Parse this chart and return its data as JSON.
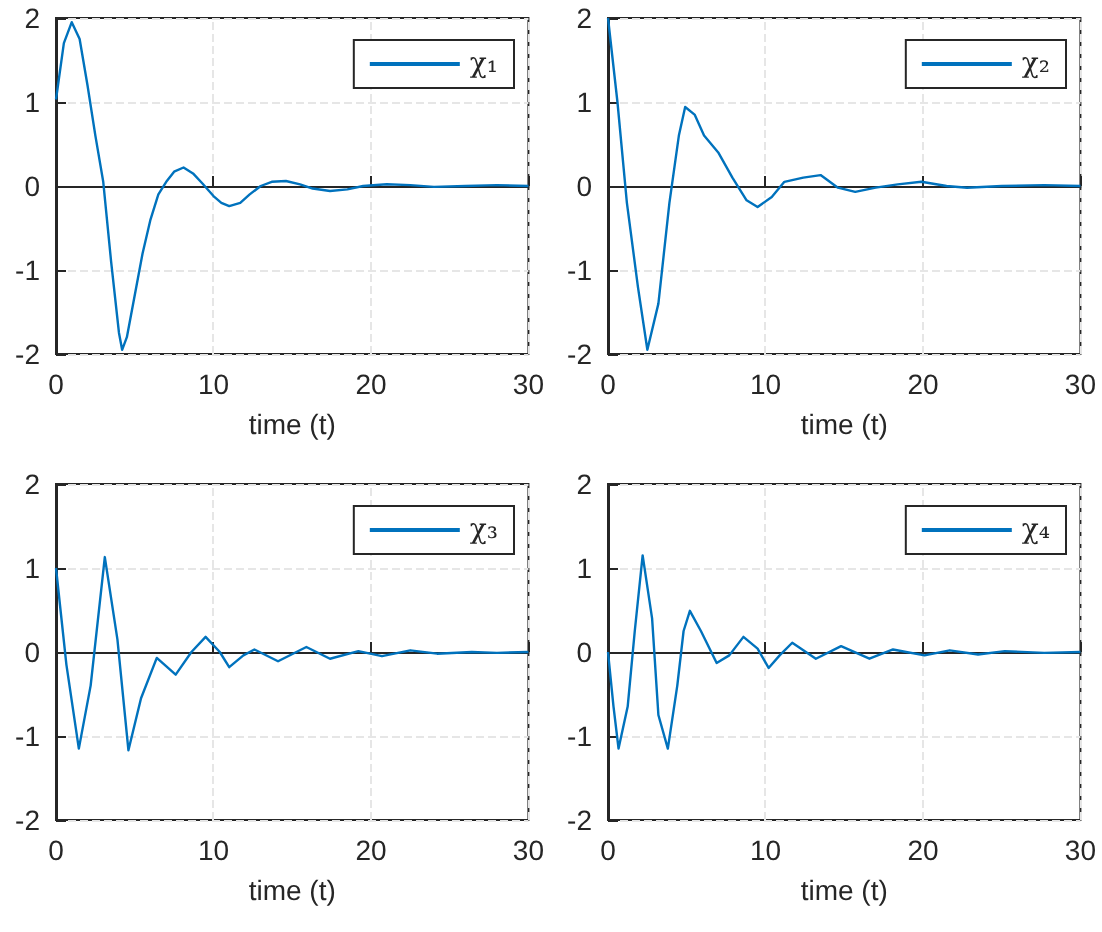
{
  "chart_data": [
    {
      "type": "line",
      "xlabel": "time (t)",
      "xlim": [
        0,
        30
      ],
      "xticks": [
        0,
        10,
        20,
        30
      ],
      "ylim": [
        -2,
        2
      ],
      "yticks": [
        -2,
        -1,
        0,
        1,
        2
      ],
      "grid": true,
      "legend": "top right",
      "marker": "none",
      "x": [
        0,
        0.5,
        1,
        1.5,
        2,
        2.5,
        3,
        3.5,
        4,
        4.2,
        4.5,
        5,
        5.5,
        6,
        6.5,
        7,
        7.5,
        8.1,
        8.7,
        9.3,
        10,
        10.5,
        11,
        11.7,
        12.3,
        13,
        13.7,
        14.6,
        15.5,
        16.3,
        17.4,
        18.5,
        19.5,
        21,
        22.5,
        24,
        26,
        28,
        30
      ],
      "series": [
        {
          "name": "χ₁",
          "color": "#0072bd",
          "values": [
            1.03,
            1.7,
            1.95,
            1.75,
            1.2,
            0.6,
            0.05,
            -0.9,
            -1.75,
            -1.95,
            -1.8,
            -1.3,
            -0.8,
            -0.4,
            -0.1,
            0.05,
            0.17,
            0.22,
            0.15,
            0.03,
            -0.12,
            -0.2,
            -0.24,
            -0.2,
            -0.1,
            0,
            0.05,
            0.06,
            0.02,
            -0.03,
            -0.06,
            -0.04,
            0,
            0.02,
            0.01,
            -0.01,
            0,
            0.01,
            0
          ]
        }
      ]
    },
    {
      "type": "line",
      "xlabel": "time (t)",
      "xlim": [
        0,
        30
      ],
      "xticks": [
        0,
        10,
        20,
        30
      ],
      "ylim": [
        -2,
        2
      ],
      "yticks": [
        -2,
        -1,
        0,
        1,
        2
      ],
      "grid": true,
      "legend": "top right",
      "marker": "none",
      "x": [
        0,
        0.6,
        1.2,
        1.9,
        2.5,
        3.2,
        3.9,
        4.5,
        4.9,
        5.5,
        6.1,
        7,
        7.9,
        8.8,
        9.5,
        10.4,
        11.2,
        12.4,
        13.5,
        14.6,
        15.7,
        17,
        18.4,
        19.9,
        21.5,
        22.8,
        25,
        27.7,
        30
      ],
      "series": [
        {
          "name": "χ₂",
          "color": "#0072bd",
          "values": [
            2,
            1,
            -0.2,
            -1.2,
            -1.95,
            -1.4,
            -0.2,
            0.6,
            0.94,
            0.85,
            0.6,
            0.4,
            0.1,
            -0.17,
            -0.25,
            -0.13,
            0.05,
            0.1,
            0.13,
            -0.02,
            -0.07,
            -0.02,
            0.02,
            0.05,
            0,
            -0.02,
            0,
            0.01,
            0
          ]
        }
      ]
    },
    {
      "type": "line",
      "xlabel": "time (t)",
      "xlim": [
        0,
        30
      ],
      "xticks": [
        0,
        10,
        20,
        30
      ],
      "ylim": [
        -2,
        2
      ],
      "yticks": [
        -2,
        -1,
        0,
        1,
        2
      ],
      "grid": true,
      "legend": "top right",
      "marker": "none",
      "x": [
        0,
        0.66,
        1.45,
        2.2,
        3.1,
        3.9,
        4.6,
        5.4,
        6.4,
        7.6,
        8.6,
        9.5,
        10.4,
        11,
        11.9,
        12.6,
        14.1,
        15.9,
        17.4,
        19.2,
        20.7,
        22.5,
        24.2,
        26.4,
        28,
        30
      ],
      "series": [
        {
          "name": "χ₃",
          "color": "#0072bd",
          "values": [
            1,
            -0.15,
            -1.15,
            -0.4,
            1.13,
            0.15,
            -1.17,
            -0.55,
            -0.07,
            -0.27,
            0,
            0.18,
            0,
            -0.18,
            -0.04,
            0.03,
            -0.11,
            0.06,
            -0.08,
            0.01,
            -0.05,
            0.02,
            -0.02,
            0,
            -0.01,
            0
          ]
        }
      ]
    },
    {
      "type": "line",
      "xlabel": "time (t)",
      "xlim": [
        0,
        30
      ],
      "xticks": [
        0,
        10,
        20,
        30
      ],
      "ylim": [
        -2,
        2
      ],
      "yticks": [
        -2,
        -1,
        0,
        1,
        2
      ],
      "grid": true,
      "legend": "top right",
      "marker": "none",
      "x": [
        0,
        0.35,
        0.67,
        1.25,
        1.7,
        2.2,
        2.8,
        3.2,
        3.8,
        4.4,
        4.8,
        5.2,
        5.9,
        6.9,
        7.7,
        8.6,
        9.5,
        10.2,
        10.9,
        11.7,
        13.2,
        14.8,
        16.6,
        18.1,
        20.1,
        21.7,
        23.5,
        25.2,
        27.7,
        30
      ],
      "series": [
        {
          "name": "χ₄",
          "color": "#0072bd",
          "values": [
            0,
            -0.65,
            -1.15,
            -0.65,
            0.25,
            1.15,
            0.4,
            -0.75,
            -1.15,
            -0.4,
            0.25,
            0.49,
            0.25,
            -0.13,
            -0.04,
            0.18,
            0.04,
            -0.19,
            -0.04,
            0.11,
            -0.08,
            0.07,
            -0.08,
            0.03,
            -0.04,
            0.02,
            -0.03,
            0.01,
            -0.01,
            0
          ]
        }
      ]
    }
  ]
}
